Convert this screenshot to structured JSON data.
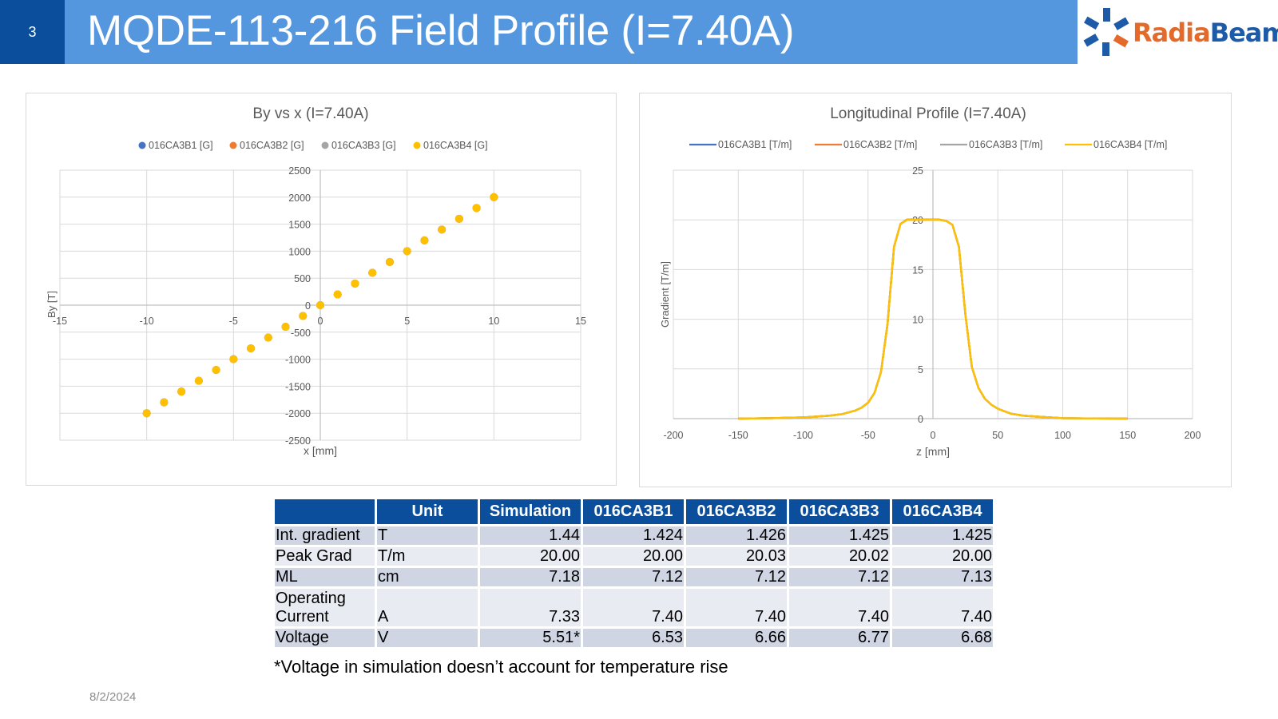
{
  "slide": {
    "number": "3",
    "title": "MQDE-113-216 Field Profile (I=7.40A)",
    "date": "8/2/2024",
    "footnote": "*Voltage in simulation doesn’t account for temperature rise"
  },
  "logo": {
    "part1": "Radia",
    "part2": "Beam",
    "colors": {
      "orange": "#e36a2a",
      "blue": "#1d5aa8"
    }
  },
  "colors": {
    "header_dark": "#0b4f9c",
    "header_light": "#5597de"
  },
  "chart_data": [
    {
      "type": "scatter",
      "title": "By vs x (I=7.40A)",
      "xlabel": "x [mm]",
      "ylabel": "By [T]",
      "xlim": [
        -15,
        15
      ],
      "ylim": [
        -2500,
        2500
      ],
      "x_ticks": [
        -15,
        -10,
        -5,
        0,
        5,
        10,
        15
      ],
      "y_ticks": [
        -2500,
        -2000,
        -1500,
        -1000,
        -500,
        0,
        500,
        1000,
        1500,
        2000,
        2500
      ],
      "grid": true,
      "legend_position": "top",
      "series": [
        {
          "name": "016CA3B1 [G]",
          "color": "#4472c4",
          "x": [
            -10,
            -9,
            -8,
            -7,
            -6,
            -5,
            -4,
            -3,
            -2,
            -1,
            0,
            1,
            2,
            3,
            4,
            5,
            6,
            7,
            8,
            9,
            10
          ],
          "y": [
            -2000,
            -1800,
            -1600,
            -1400,
            -1200,
            -1000,
            -800,
            -600,
            -400,
            -200,
            0,
            200,
            400,
            600,
            800,
            1000,
            1200,
            1400,
            1600,
            1800,
            2000
          ]
        },
        {
          "name": "016CA3B2 [G]",
          "color": "#ed7d31",
          "x": [
            -10,
            -9,
            -8,
            -7,
            -6,
            -5,
            -4,
            -3,
            -2,
            -1,
            0,
            1,
            2,
            3,
            4,
            5,
            6,
            7,
            8,
            9,
            10
          ],
          "y": [
            -2000,
            -1800,
            -1600,
            -1400,
            -1200,
            -1000,
            -800,
            -600,
            -400,
            -200,
            0,
            200,
            400,
            600,
            800,
            1000,
            1200,
            1400,
            1600,
            1800,
            2000
          ]
        },
        {
          "name": "016CA3B3 [G]",
          "color": "#a5a5a5",
          "x": [
            -10,
            -9,
            -8,
            -7,
            -6,
            -5,
            -4,
            -3,
            -2,
            -1,
            0,
            1,
            2,
            3,
            4,
            5,
            6,
            7,
            8,
            9,
            10
          ],
          "y": [
            -2000,
            -1800,
            -1600,
            -1400,
            -1200,
            -1000,
            -800,
            -600,
            -400,
            -200,
            0,
            200,
            400,
            600,
            800,
            1000,
            1200,
            1400,
            1600,
            1800,
            2000
          ]
        },
        {
          "name": "016CA3B4 [G]",
          "color": "#ffc000",
          "x": [
            -10,
            -9,
            -8,
            -7,
            -6,
            -5,
            -4,
            -3,
            -2,
            -1,
            0,
            1,
            2,
            3,
            4,
            5,
            6,
            7,
            8,
            9,
            10
          ],
          "y": [
            -2000,
            -1800,
            -1600,
            -1400,
            -1200,
            -1000,
            -800,
            -600,
            -400,
            -200,
            0,
            200,
            400,
            600,
            800,
            1000,
            1200,
            1400,
            1600,
            1800,
            2000
          ]
        }
      ]
    },
    {
      "type": "line",
      "title": "Longitudinal Profile (I=7.40A)",
      "xlabel": "z [mm]",
      "ylabel": "Gradient [T/m]",
      "xlim": [
        -200,
        200
      ],
      "ylim": [
        0,
        25
      ],
      "x_ticks": [
        -200,
        -150,
        -100,
        -50,
        0,
        50,
        100,
        150,
        200
      ],
      "y_ticks": [
        0,
        5,
        10,
        15,
        20,
        25
      ],
      "grid": true,
      "legend_position": "top",
      "x": [
        -150,
        -125,
        -100,
        -90,
        -80,
        -70,
        -60,
        -55,
        -50,
        -45,
        -40,
        -35,
        -30,
        -25,
        -20,
        -15,
        -10,
        -5,
        0,
        5,
        10,
        15,
        20,
        25,
        30,
        35,
        40,
        45,
        50,
        55,
        60,
        70,
        80,
        90,
        100,
        125,
        150
      ],
      "series": [
        {
          "name": "016CA3B1 [T/m]",
          "color": "#4472c4",
          "values": [
            0,
            0.05,
            0.12,
            0.2,
            0.3,
            0.45,
            0.8,
            1.1,
            1.6,
            2.6,
            4.7,
            9.5,
            17.3,
            19.6,
            20.0,
            20.0,
            20.0,
            20.0,
            20.0,
            20.0,
            19.9,
            19.5,
            17.3,
            10.5,
            5.2,
            3.1,
            2.0,
            1.4,
            1.0,
            0.75,
            0.5,
            0.3,
            0.2,
            0.12,
            0.05,
            0.02,
            0
          ]
        },
        {
          "name": "016CA3B2 [T/m]",
          "color": "#ed7d31",
          "values": [
            0,
            0.05,
            0.12,
            0.2,
            0.3,
            0.45,
            0.8,
            1.1,
            1.6,
            2.6,
            4.7,
            9.5,
            17.3,
            19.6,
            20.03,
            20.03,
            20.03,
            20.03,
            20.03,
            20.03,
            19.9,
            19.5,
            17.3,
            10.5,
            5.2,
            3.1,
            2.0,
            1.4,
            1.0,
            0.75,
            0.5,
            0.3,
            0.2,
            0.12,
            0.05,
            0.02,
            0
          ]
        },
        {
          "name": "016CA3B3 [T/m]",
          "color": "#a5a5a5",
          "values": [
            0,
            0.05,
            0.12,
            0.2,
            0.3,
            0.45,
            0.8,
            1.1,
            1.6,
            2.6,
            4.7,
            9.5,
            17.3,
            19.6,
            20.02,
            20.02,
            20.02,
            20.02,
            20.02,
            20.02,
            19.9,
            19.5,
            17.3,
            10.5,
            5.2,
            3.1,
            2.0,
            1.4,
            1.0,
            0.75,
            0.5,
            0.3,
            0.2,
            0.12,
            0.05,
            0.02,
            0
          ]
        },
        {
          "name": "016CA3B4 [T/m]",
          "color": "#ffc000",
          "values": [
            0,
            0.05,
            0.12,
            0.2,
            0.3,
            0.45,
            0.8,
            1.1,
            1.6,
            2.6,
            4.7,
            9.5,
            17.3,
            19.6,
            20.0,
            20.0,
            20.0,
            20.0,
            20.0,
            20.0,
            19.9,
            19.5,
            17.3,
            10.5,
            5.2,
            3.1,
            2.0,
            1.4,
            1.0,
            0.75,
            0.5,
            0.3,
            0.2,
            0.12,
            0.05,
            0.02,
            0
          ]
        }
      ]
    }
  ],
  "table": {
    "headers": [
      "",
      "Unit",
      "Simulation",
      "016CA3B1",
      "016CA3B2",
      "016CA3B3",
      "016CA3B4"
    ],
    "rows": [
      {
        "label": "Int. gradient",
        "unit": "T",
        "values": [
          "1.44",
          "1.424",
          "1.426",
          "1.425",
          "1.425"
        ]
      },
      {
        "label": "Peak Grad",
        "unit": "T/m",
        "values": [
          "20.00",
          "20.00",
          "20.03",
          "20.02",
          "20.00"
        ]
      },
      {
        "label": "ML",
        "unit": "cm",
        "values": [
          "7.18",
          "7.12",
          "7.12",
          "7.12",
          "7.13"
        ]
      },
      {
        "label": "Operating Current",
        "unit": "A",
        "values": [
          "7.33",
          "7.40",
          "7.40",
          "7.40",
          "7.40"
        ]
      },
      {
        "label": "Voltage",
        "unit": "V",
        "values": [
          "5.51*",
          "6.53",
          "6.66",
          "6.77",
          "6.68"
        ]
      }
    ]
  }
}
